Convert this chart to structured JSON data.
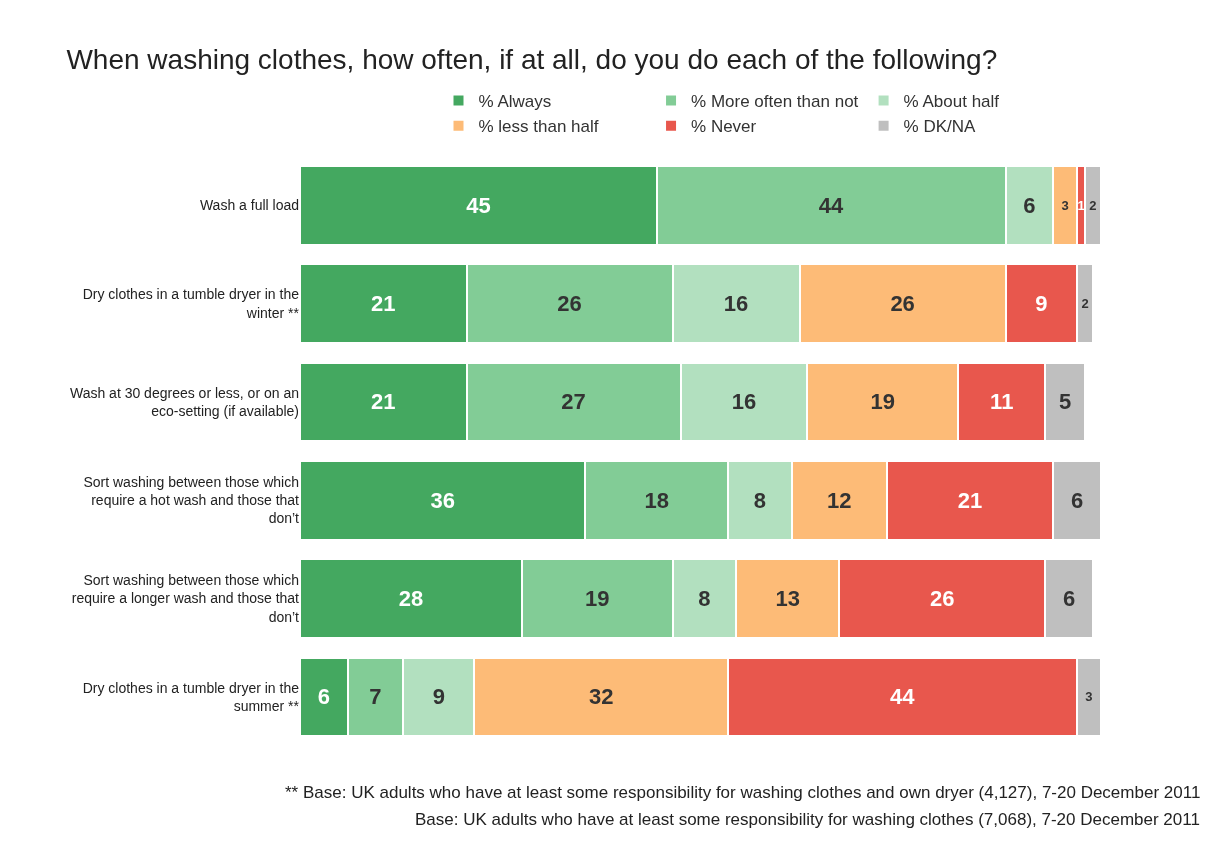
{
  "chart_data": {
    "type": "bar",
    "orientation": "horizontal",
    "stacked": true,
    "data_labels": true,
    "legend": "top",
    "tick_labels": "y",
    "title": "When washing clothes, how often, if at all, do you do each of the following?",
    "categories": [
      "Wash a full load",
      "Dry clothes in a tumble dryer in the winter **",
      "Wash at 30 degrees or less, or on an eco-setting (if available)",
      "Sort washing between those which require a hot wash and those that don’t",
      "Sort washing between those which require a longer wash and those that don’t",
      "Dry clothes in a tumble dryer in the summer **"
    ],
    "series": [
      {
        "name": "% Always",
        "color": "#44a860",
        "values": [
          45,
          21,
          21,
          36,
          28,
          6
        ]
      },
      {
        "name": "% More often than not",
        "color": "#82cc96",
        "values": [
          44,
          26,
          27,
          18,
          19,
          7
        ]
      },
      {
        "name": "% About half",
        "color": "#b2e0bf",
        "values": [
          6,
          16,
          16,
          8,
          8,
          9
        ]
      },
      {
        "name": "% less than half",
        "color": "#fdbb77",
        "values": [
          3,
          26,
          19,
          12,
          13,
          32
        ]
      },
      {
        "name": "% Never",
        "color": "#e8574d",
        "values": [
          1,
          9,
          11,
          21,
          26,
          44
        ]
      },
      {
        "name": "% DK/NA",
        "color": "#bfbfbf",
        "values": [
          2,
          2,
          5,
          6,
          6,
          3
        ]
      }
    ],
    "annotations": [
      "** Base: UK adults who have at least some responsibility for washing clothes and own dryer (4,127), 7-20 December 2011",
      "Base: UK adults who have at least some responsibility for washing clothes (7,068), 7-20 December 2011"
    ]
  }
}
